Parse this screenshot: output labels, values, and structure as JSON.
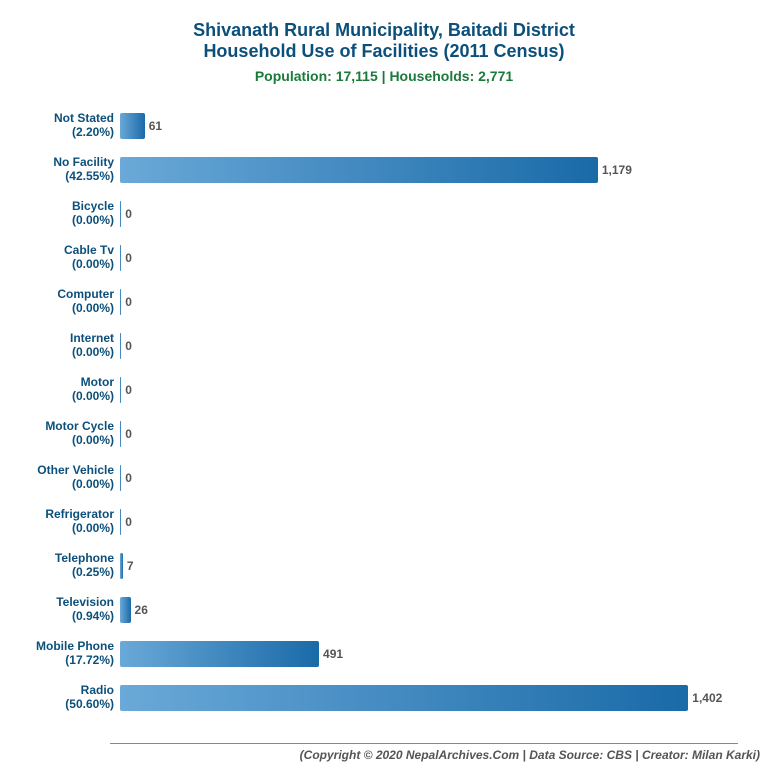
{
  "chart": {
    "title_line1": "Shivanath Rural Municipality, Baitadi District",
    "title_line2": "Household Use of Facilities (2011 Census)",
    "title_color": "#0b4f7a",
    "title_fontsize": 18,
    "subtitle": "Population: 17,115 | Households: 2,771",
    "subtitle_color": "#1a7a3a",
    "subtitle_fontsize": 14,
    "label_color": "#0b4f7a",
    "label_fontsize": 12,
    "value_color": "#555555",
    "value_fontsize": 12,
    "background_color": "#ffffff",
    "x_max": 1500,
    "bar_gradient_start": "#6aa9d8",
    "bar_gradient_end": "#1a6aa8",
    "baseline_color": "#888888",
    "footer": "(Copyright © 2020 NepalArchives.Com | Data Source: CBS | Creator: Milan Karki)",
    "footer_color": "#555555",
    "footer_fontsize": 12,
    "rows": [
      {
        "name": "Not Stated",
        "pct": "(2.20%)",
        "value": 61,
        "value_label": "61"
      },
      {
        "name": "No Facility",
        "pct": "(42.55%)",
        "value": 1179,
        "value_label": "1,179"
      },
      {
        "name": "Bicycle",
        "pct": "(0.00%)",
        "value": 0,
        "value_label": "0"
      },
      {
        "name": "Cable Tv",
        "pct": "(0.00%)",
        "value": 0,
        "value_label": "0"
      },
      {
        "name": "Computer",
        "pct": "(0.00%)",
        "value": 0,
        "value_label": "0"
      },
      {
        "name": "Internet",
        "pct": "(0.00%)",
        "value": 0,
        "value_label": "0"
      },
      {
        "name": "Motor",
        "pct": "(0.00%)",
        "value": 0,
        "value_label": "0"
      },
      {
        "name": "Motor Cycle",
        "pct": "(0.00%)",
        "value": 0,
        "value_label": "0"
      },
      {
        "name": "Other Vehicle",
        "pct": "(0.00%)",
        "value": 0,
        "value_label": "0"
      },
      {
        "name": "Refrigerator",
        "pct": "(0.00%)",
        "value": 0,
        "value_label": "0"
      },
      {
        "name": "Telephone",
        "pct": "(0.25%)",
        "value": 7,
        "value_label": "7"
      },
      {
        "name": "Television",
        "pct": "(0.94%)",
        "value": 26,
        "value_label": "26"
      },
      {
        "name": "Mobile Phone",
        "pct": "(17.72%)",
        "value": 491,
        "value_label": "491"
      },
      {
        "name": "Radio",
        "pct": "(50.60%)",
        "value": 1402,
        "value_label": "1,402"
      }
    ]
  }
}
